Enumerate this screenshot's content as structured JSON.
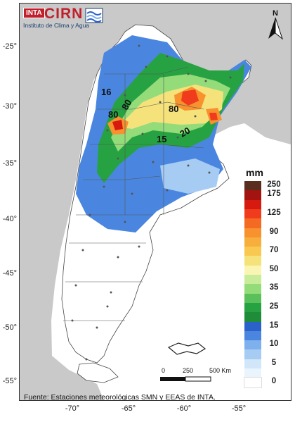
{
  "logo": {
    "inta": "INTA",
    "cirn": "CIRN",
    "subtitle": "Instituto de Clima y Agua"
  },
  "north_label": "N",
  "legend": {
    "title": "mm",
    "classes": [
      {
        "label": "250",
        "color": "#5a2e1e"
      },
      {
        "label": "175",
        "color": "#a3130f"
      },
      {
        "label": "",
        "color": "#d61a10"
      },
      {
        "label": "125",
        "color": "#f03c1c"
      },
      {
        "label": "",
        "color": "#f56a22"
      },
      {
        "label": "90",
        "color": "#f7922e"
      },
      {
        "label": "",
        "color": "#f8ae3c"
      },
      {
        "label": "70",
        "color": "#f8c850"
      },
      {
        "label": "",
        "color": "#f6e27a"
      },
      {
        "label": "50",
        "color": "#fbf5b4"
      },
      {
        "label": "",
        "color": "#c8ec9a"
      },
      {
        "label": "35",
        "color": "#94dc7a"
      },
      {
        "label": "",
        "color": "#5ac05a"
      },
      {
        "label": "25",
        "color": "#27a242"
      },
      {
        "label": "",
        "color": "#1f8c3a"
      },
      {
        "label": "15",
        "color": "#2a62c9"
      },
      {
        "label": "",
        "color": "#4a86e0"
      },
      {
        "label": "10",
        "color": "#7fb0ee"
      },
      {
        "label": "",
        "color": "#a7ccf4"
      },
      {
        "label": "5",
        "color": "#d2e6fa"
      },
      {
        "label": "",
        "color": "#eaf4fd"
      },
      {
        "label": "0",
        "color": "#ffffff"
      }
    ]
  },
  "scale_bar": {
    "labels": [
      "0",
      "250",
      "500 Km"
    ]
  },
  "source": "Fuente: Estaciones meteorológicas SMN y EEAS de INTA.",
  "lat_ticks": [
    "-25°",
    "-30°",
    "-35°",
    "-40°",
    "-45°",
    "-50°",
    "-55°"
  ],
  "lon_ticks": [
    "-70°",
    "-65°",
    "-60°",
    "-55°"
  ],
  "isohyet_labels": [
    "16",
    "80",
    "80",
    "80",
    "20",
    "15"
  ]
}
